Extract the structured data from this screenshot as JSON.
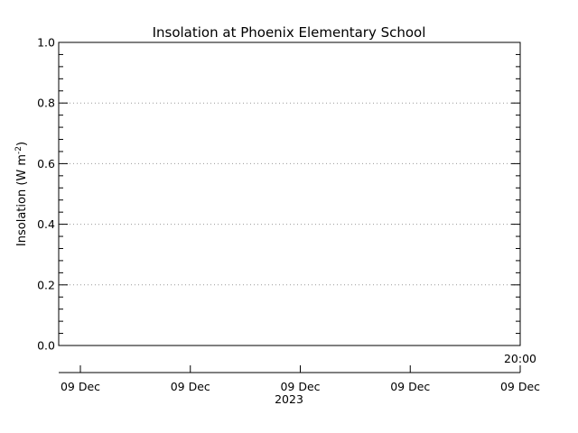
{
  "chart_data": {
    "type": "line",
    "title": "Insolation at Phoenix Elementary School",
    "ylabel_main": "Insolation (W m",
    "ylabel_exp": "-2",
    "ylabel_close": ")",
    "ylim": [
      0.0,
      1.0
    ],
    "yticks": [
      "0.0",
      "0.2",
      "0.4",
      "0.6",
      "0.8",
      "1.0"
    ],
    "ytick_values": [
      0.0,
      0.2,
      0.4,
      0.6,
      0.8,
      1.0
    ],
    "grid": true,
    "time_marker": "20:00",
    "xticks": [
      "09 Dec",
      "09 Dec",
      "09 Dec",
      "09 Dec",
      "09 Dec"
    ],
    "xyear": "2023",
    "series": []
  }
}
